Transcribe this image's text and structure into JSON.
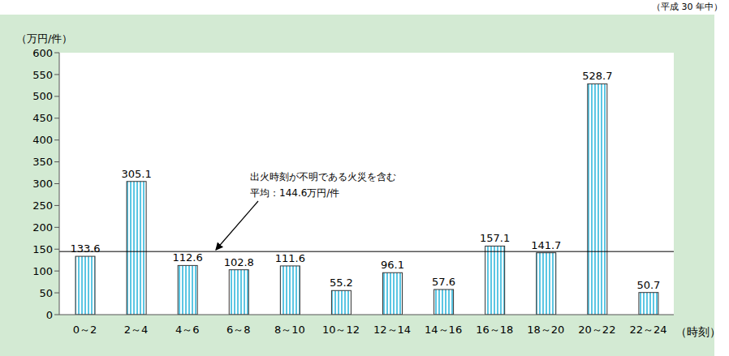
{
  "chart_data": {
    "type": "bar",
    "subtitle": "（平成 30 年中）",
    "y_label": "（万円/件）",
    "x_label": "（時刻）",
    "categories": [
      "0～2",
      "2～4",
      "4～6",
      "6～8",
      "8～10",
      "10～12",
      "12～14",
      "14～16",
      "16～18",
      "18～20",
      "20～22",
      "22～24"
    ],
    "values": [
      133.6,
      305.1,
      112.6,
      102.8,
      111.6,
      55.2,
      96.1,
      57.6,
      157.1,
      141.7,
      528.7,
      50.7
    ],
    "color": "#5cc6e3",
    "ylim": [
      0,
      600
    ],
    "yticks": [
      0,
      50,
      100,
      150,
      200,
      250,
      300,
      350,
      400,
      450,
      500,
      550,
      600
    ],
    "data_labels": true,
    "grid": false,
    "average": {
      "value": 144.6,
      "label": "平均：144.6万円/件"
    },
    "annotation": "出火時刻が不明である火災を含む"
  }
}
